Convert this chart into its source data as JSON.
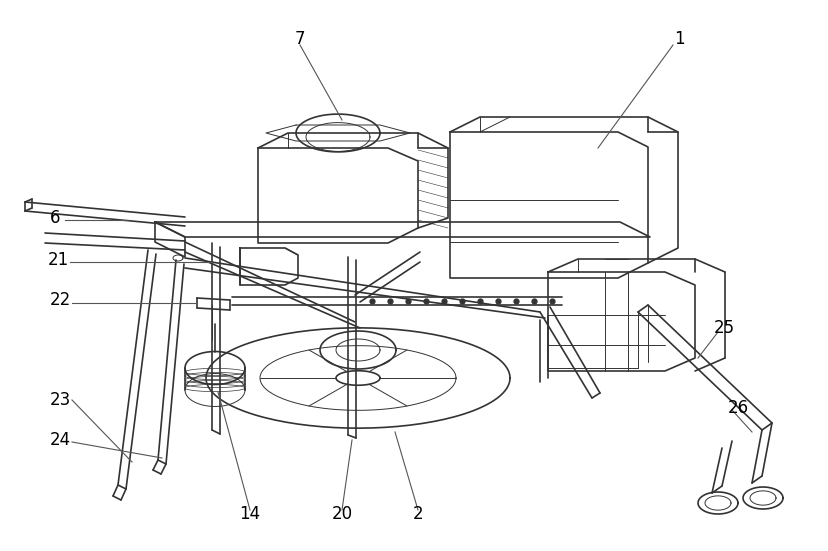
{
  "bg_color": "#ffffff",
  "line_color": "#333333",
  "lw": 1.2,
  "thin_lw": 0.7,
  "figsize": [
    8.29,
    5.51
  ],
  "dpi": 100
}
